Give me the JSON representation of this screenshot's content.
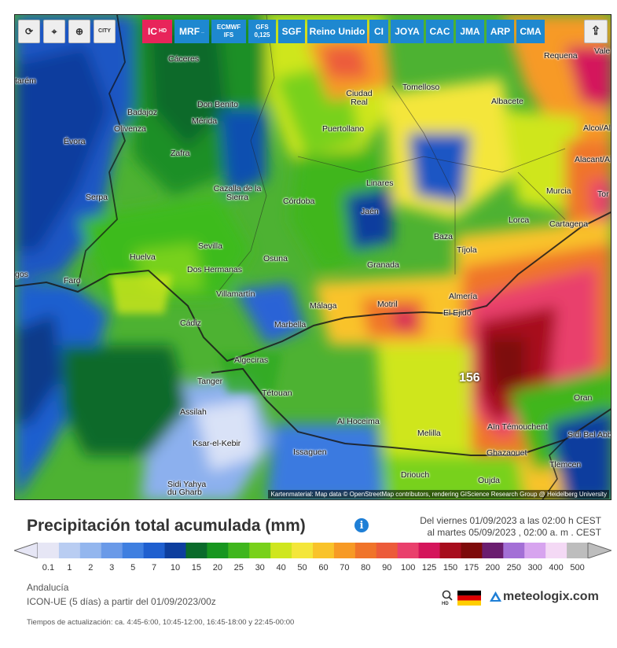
{
  "toolbar": {
    "refresh_icon": "refresh-icon",
    "location_icon": "location-pin-icon",
    "zoom_icon": "zoom-icon",
    "city_toggle": "CITY",
    "share_icon": "share-icon",
    "models": [
      {
        "label": "IC",
        "sub": "HD",
        "active": true
      },
      {
        "label": "MRF",
        "sub": "_"
      },
      {
        "label": "ECMWF",
        "sub": "IFS"
      },
      {
        "label": "GFS",
        "sub": "0,125"
      },
      {
        "label": "SGF",
        "sub": ""
      },
      {
        "label": "Reino Unido",
        "sub": ""
      },
      {
        "label": "CI",
        "sub": ""
      },
      {
        "label": "JOYA",
        "sub": ""
      },
      {
        "label": "CAC",
        "sub": ""
      },
      {
        "label": "JMA",
        "sub": ""
      },
      {
        "label": "ARP",
        "sub": ""
      },
      {
        "label": "CMA",
        "sub": ""
      }
    ]
  },
  "map": {
    "cities": [
      "Cáceres",
      "Badajoz",
      "Don Benito",
      "Mérida",
      "Olivenza",
      "Évora",
      "Zafra",
      "Serpa",
      "Cazalla de la Sierra",
      "Córdoba",
      "Ciudad Real",
      "Tomelloso",
      "Puertollano",
      "Albacete",
      "Requena",
      "Linares",
      "Jaén",
      "Baza",
      "Lorca",
      "Murcia",
      "Cartagena",
      "Alcoi/Alcoy",
      "Alacant/Alicante",
      "Huelva",
      "Sevilla",
      "Dos Hermanas",
      "Osuna",
      "Granada",
      "Tíjola",
      "Faro",
      "Villamartín",
      "Málaga",
      "Motril",
      "Almería",
      "El Ejido",
      "Cádiz",
      "Marbella",
      "Algeciras",
      "Tanger",
      "Tétouan",
      "Assilah",
      "Al Hoceima",
      "Melilla",
      "Ksar-el-Kebir",
      "Issaguen",
      "Sidi Yahya du Gharb",
      "Driouch",
      "Oran",
      "Aïn Témouchent",
      "Sidi Bel Abbès",
      "Ghazaouet",
      "Tlemcen",
      "Oujda",
      "tarém",
      "gos",
      "Vale",
      "Tor"
    ],
    "peak_value": "156",
    "attribution": "Kartenmaterial: Map data © OpenStreetMap contributors, rendering GIScience Research Group @ Heidelberg University"
  },
  "legend": {
    "title": "Precipitación total acumulada (mm)",
    "period_line1": "Del viernes 01/09/2023 a  las 02:00 h  CEST",
    "period_line2": "al martes 05/09/2023 ,  02:00 a. m . CEST",
    "ticks": [
      "0.1",
      "1",
      "2",
      "3",
      "5",
      "7",
      "10",
      "15",
      "20",
      "25",
      "30",
      "40",
      "50",
      "60",
      "70",
      "80",
      "90",
      "100",
      "125",
      "150",
      "175",
      "200",
      "250",
      "300",
      "400",
      "500"
    ],
    "colors": [
      "#e6e6f5",
      "#b9cdf2",
      "#93b6ee",
      "#6a9ae8",
      "#3f7fe0",
      "#1f5fcf",
      "#0d3e9e",
      "#0a6b2b",
      "#17961f",
      "#3fb61d",
      "#78d11b",
      "#cfe61f",
      "#f4e63a",
      "#f9c32a",
      "#f79a25",
      "#f0742a",
      "#ec5b3a",
      "#e9406c",
      "#d4155b",
      "#a70d1d",
      "#7d0a0a",
      "#6a1d6f",
      "#a36fd6",
      "#d7a4ef",
      "#f4d9f5",
      "#bdbdbd"
    ],
    "region": "Andalucía",
    "model_line": "ICON-UE  (5 días)  a partir del 01/09/2023/00z",
    "updates": "Tiempos de actualización: ca. 4:45-6:00, 10:45-12:00, 16:45-18:00 y 22:45-00:00",
    "brand": "meteologix.com",
    "hd_label": "HD"
  }
}
